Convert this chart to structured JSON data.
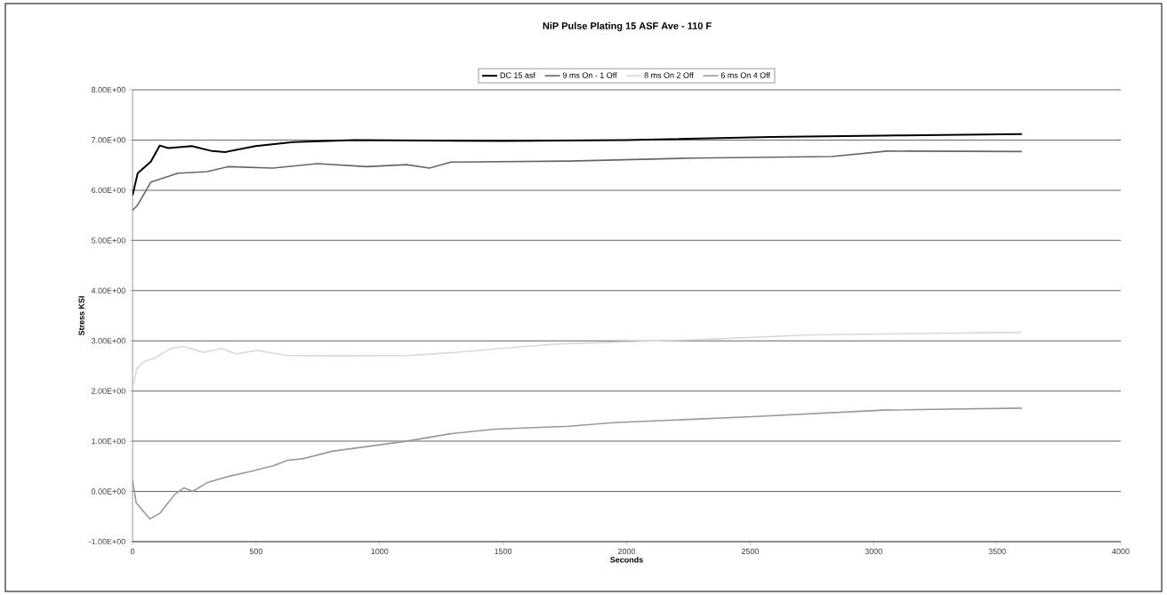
{
  "chart_data": {
    "type": "line",
    "title": "NiP Pulse Plating 15 ASF Ave - 110 F",
    "xlabel": "Seconds",
    "ylabel": "Stress KSI",
    "xlim": [
      0,
      4000
    ],
    "xticks": [
      0,
      500,
      1000,
      1500,
      2000,
      2500,
      3000,
      3500,
      4000
    ],
    "ylim": [
      -1,
      8
    ],
    "yticks": [
      {
        "value": -1,
        "label": "-1.00E+00"
      },
      {
        "value": 0,
        "label": "0.00E+00"
      },
      {
        "value": 1,
        "label": "1.00E+00"
      },
      {
        "value": 2,
        "label": "2.00E+00"
      },
      {
        "value": 3,
        "label": "3.00E+00"
      },
      {
        "value": 4,
        "label": "4.00E+00"
      },
      {
        "value": 5,
        "label": "5.00E+00"
      },
      {
        "value": 6,
        "label": "6.00E+00"
      },
      {
        "value": 7,
        "label": "7.00E+00"
      },
      {
        "value": 8,
        "label": "8.00E+00"
      }
    ],
    "grid": "y",
    "legend": "top",
    "marker": "none",
    "line_style": "solid",
    "series": [
      {
        "name": "DC 15 asf",
        "color": "#000000",
        "x": [
          0,
          21,
          74,
          110,
          145,
          240,
          322,
          375,
          498,
          650,
          900,
          1500,
          2000,
          2588,
          3100,
          3600
        ],
        "values": [
          5.9,
          6.34,
          6.57,
          6.89,
          6.84,
          6.88,
          6.78,
          6.76,
          6.88,
          6.96,
          7.0,
          6.98,
          7.0,
          7.06,
          7.09,
          7.12
        ]
      },
      {
        "name": "9 ms On - 1 Off",
        "color": "#666666",
        "x": [
          0,
          20,
          74,
          184,
          302,
          388,
          568,
          748,
          950,
          1109,
          1202,
          1289,
          1768,
          2268,
          2830,
          3053,
          3600
        ],
        "values": [
          5.6,
          5.7,
          6.16,
          6.34,
          6.37,
          6.47,
          6.44,
          6.53,
          6.47,
          6.51,
          6.44,
          6.56,
          6.58,
          6.64,
          6.67,
          6.78,
          6.77
        ]
      },
      {
        "name": "8 ms On 2 Off",
        "color": "#d9d9d9",
        "x": [
          0,
          17,
          47,
          88,
          156,
          204,
          288,
          360,
          420,
          504,
          624,
          828,
          1128,
          1308,
          1488,
          1728,
          2266,
          2748,
          3600
        ],
        "values": [
          2.06,
          2.44,
          2.59,
          2.65,
          2.85,
          2.89,
          2.77,
          2.85,
          2.74,
          2.81,
          2.71,
          2.7,
          2.71,
          2.77,
          2.85,
          2.94,
          3.02,
          3.12,
          3.17
        ]
      },
      {
        "name": "6 ms On 4 Off",
        "color": "#999999",
        "x": [
          0,
          15,
          70,
          112,
          172,
          208,
          244,
          304,
          388,
          472,
          568,
          628,
          688,
          808,
          988,
          1108,
          1288,
          1468,
          1768,
          1945,
          2509,
          3040,
          3600
        ],
        "values": [
          0.23,
          -0.23,
          -0.55,
          -0.43,
          -0.05,
          0.07,
          0.0,
          0.18,
          0.3,
          0.39,
          0.51,
          0.62,
          0.65,
          0.8,
          0.92,
          1.0,
          1.15,
          1.24,
          1.3,
          1.37,
          1.49,
          1.62,
          1.66
        ]
      }
    ]
  }
}
